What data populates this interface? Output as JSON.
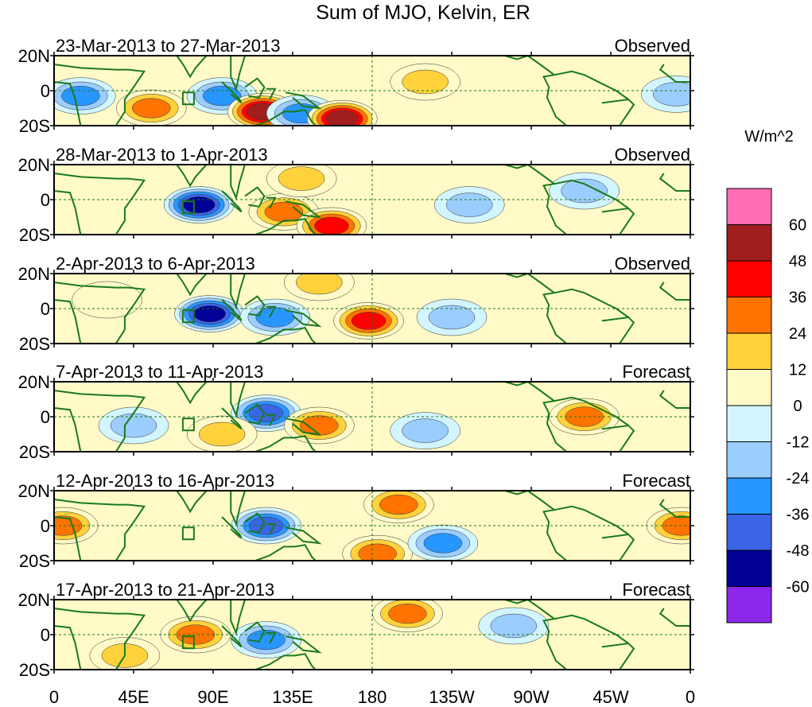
{
  "title": "Sum of MJO, Kelvin, ER",
  "units_label": "W/m^2",
  "y_ticks": [
    "20N",
    "0",
    "20S"
  ],
  "x_ticks": [
    "0",
    "45E",
    "90E",
    "135E",
    "180",
    "135W",
    "90W",
    "45W",
    "0"
  ],
  "colorbar": {
    "labels": [
      "60",
      "48",
      "36",
      "24",
      "12",
      "0",
      "-12",
      "-24",
      "-36",
      "-48",
      "-60"
    ],
    "colors_top_to_bottom": [
      "#ff6eb4",
      "#a01e1e",
      "#ff0000",
      "#ff7300",
      "#ffd23c",
      "#fffac8",
      "#d2f5ff",
      "#9bcdff",
      "#2896ff",
      "#3c64e6",
      "#000096",
      "#8c28eb"
    ]
  },
  "colors": {
    "coast": "#1a7a1a",
    "equator_line": "#1a7a1a"
  },
  "chart_data": {
    "type": "heatmap",
    "title": "Sum of MJO, Kelvin, ER",
    "units": "W/m^2",
    "x_axis": {
      "type": "longitude",
      "range": [
        0,
        360
      ],
      "tick_labels": [
        "0",
        "45E",
        "90E",
        "135E",
        "180",
        "135W",
        "90W",
        "45W",
        "0"
      ]
    },
    "y_axis": {
      "type": "latitude",
      "range": [
        -20,
        20
      ],
      "tick_labels": [
        "20N",
        "0",
        "20S"
      ]
    },
    "contour_levels": [
      -60,
      -48,
      -36,
      -24,
      -12,
      0,
      12,
      24,
      36,
      48,
      60
    ],
    "panels": [
      {
        "period": "23-Mar-2013 to 27-Mar-2013",
        "kind": "Observed",
        "anomalies": [
          {
            "lon": 15,
            "lat": -3,
            "value": -30
          },
          {
            "lon": 55,
            "lat": -10,
            "value": 28
          },
          {
            "lon": 95,
            "lat": -3,
            "value": -36
          },
          {
            "lon": 118,
            "lat": -12,
            "value": 50
          },
          {
            "lon": 140,
            "lat": -13,
            "value": -30
          },
          {
            "lon": 163,
            "lat": -16,
            "value": 55
          },
          {
            "lon": 210,
            "lat": 5,
            "value": 15
          },
          {
            "lon": 352,
            "lat": -2,
            "value": -24
          }
        ]
      },
      {
        "period": "28-Mar-2013 to 1-Apr-2013",
        "kind": "Observed",
        "anomalies": [
          {
            "lon": 82,
            "lat": -3,
            "value": -60
          },
          {
            "lon": 130,
            "lat": -7,
            "value": 30
          },
          {
            "lon": 157,
            "lat": -15,
            "value": 45
          },
          {
            "lon": 235,
            "lat": -3,
            "value": -24
          },
          {
            "lon": 140,
            "lat": 12,
            "value": 15
          },
          {
            "lon": 300,
            "lat": 5,
            "value": -15
          }
        ]
      },
      {
        "period": "2-Apr-2013 to 6-Apr-2013",
        "kind": "Observed",
        "anomalies": [
          {
            "lon": 88,
            "lat": -3,
            "value": -60
          },
          {
            "lon": 125,
            "lat": -5,
            "value": -30
          },
          {
            "lon": 178,
            "lat": -7,
            "value": 45
          },
          {
            "lon": 225,
            "lat": -5,
            "value": -24
          },
          {
            "lon": 150,
            "lat": 15,
            "value": 15
          },
          {
            "lon": 30,
            "lat": 5,
            "value": 12
          }
        ]
      },
      {
        "period": "7-Apr-2013 to 11-Apr-2013",
        "kind": "Forecast",
        "anomalies": [
          {
            "lon": 120,
            "lat": 2,
            "value": -40
          },
          {
            "lon": 150,
            "lat": -5,
            "value": 28
          },
          {
            "lon": 95,
            "lat": -10,
            "value": 24
          },
          {
            "lon": 300,
            "lat": 0,
            "value": 35
          },
          {
            "lon": 210,
            "lat": -8,
            "value": -24
          },
          {
            "lon": 45,
            "lat": -5,
            "value": -20
          }
        ]
      },
      {
        "period": "12-Apr-2013 to 16-Apr-2013",
        "kind": "Forecast",
        "anomalies": [
          {
            "lon": 120,
            "lat": 0,
            "value": -48
          },
          {
            "lon": 195,
            "lat": 12,
            "value": 30
          },
          {
            "lon": 183,
            "lat": -16,
            "value": 28
          },
          {
            "lon": 220,
            "lat": -10,
            "value": -30
          },
          {
            "lon": 5,
            "lat": 0,
            "value": 28
          },
          {
            "lon": 355,
            "lat": 0,
            "value": 28
          }
        ]
      },
      {
        "period": "17-Apr-2013 to 21-Apr-2013",
        "kind": "Forecast",
        "anomalies": [
          {
            "lon": 80,
            "lat": 0,
            "value": 32
          },
          {
            "lon": 120,
            "lat": -3,
            "value": -30
          },
          {
            "lon": 200,
            "lat": 12,
            "value": 26
          },
          {
            "lon": 40,
            "lat": -12,
            "value": 18
          },
          {
            "lon": 260,
            "lat": 5,
            "value": -15
          }
        ]
      }
    ]
  }
}
